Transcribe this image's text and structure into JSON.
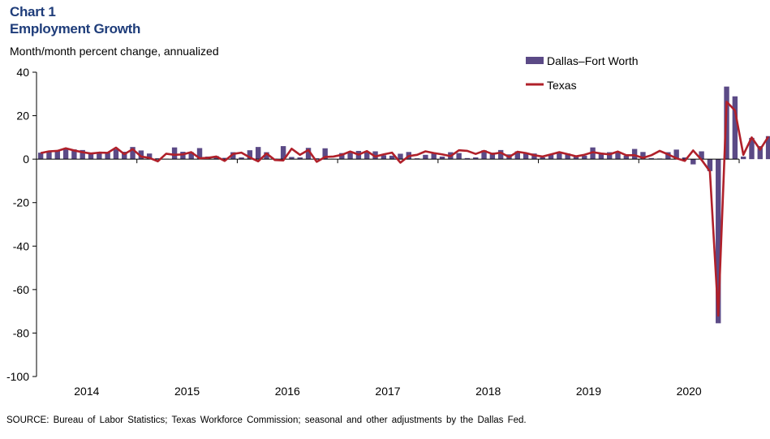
{
  "header": {
    "chart_number": "Chart 1",
    "title": "Employment Growth",
    "subtitle": "Month/month  percent change, annualized"
  },
  "source": "SOURCE: Bureau of Labor Statistics; Texas Workforce Commission; seasonal and other adjustments by the Dallas Fed.",
  "colors": {
    "dfw": "#5b4a86",
    "texas": "#b0202a"
  },
  "chart_data": {
    "type": "bar",
    "title": "Employment Growth",
    "ylabel": "Month/month  percent change, annualized",
    "xlabel": "",
    "ylim": [
      -100,
      40
    ],
    "yticks": [
      40,
      20,
      0,
      -20,
      -40,
      -60,
      -80,
      -100
    ],
    "year_labels": [
      "2014",
      "2015",
      "2016",
      "2017",
      "2018",
      "2019",
      "2020"
    ],
    "start_month": "2014-01",
    "legend_position": "top-right",
    "grid": false,
    "series": [
      {
        "name": "Dallas–Fort Worth",
        "kind": "bar",
        "values": [
          3.0,
          3.5,
          3.8,
          5.0,
          4.5,
          4.2,
          2.8,
          3.2,
          3.0,
          4.6,
          3.4,
          5.6,
          4.0,
          2.6,
          0.4,
          0.2,
          5.4,
          3.4,
          3.2,
          5.1,
          1.2,
          1.4,
          0.6,
          3.2,
          0.8,
          4.1,
          5.6,
          3.2,
          0.2,
          6.0,
          1.0,
          0.8,
          5.2,
          0.4,
          5.0,
          0.2,
          2.8,
          3.0,
          3.8,
          3.2,
          3.6,
          1.8,
          1.6,
          2.5,
          3.3,
          0.4,
          2.0,
          2.6,
          1.2,
          3.2,
          2.8,
          0.5,
          0.8,
          4.1,
          3.0,
          4.2,
          2.2,
          3.6,
          3.0,
          2.6,
          0.8,
          2.2,
          3.0,
          2.6,
          1.4,
          1.6,
          5.4,
          2.8,
          3.2,
          3.0,
          1.6,
          4.7,
          3.3,
          0.5,
          0.3,
          3.2,
          4.4,
          0.8,
          -2.4,
          3.6,
          -5.5,
          -75.5,
          33.4,
          28.9,
          1.2,
          9.8,
          6.0,
          10.6
        ]
      },
      {
        "name": "Texas",
        "kind": "line",
        "values": [
          2.8,
          3.6,
          3.8,
          5.0,
          4.0,
          3.2,
          2.6,
          3.0,
          2.9,
          5.3,
          2.3,
          4.6,
          1.2,
          0.6,
          -1.0,
          2.5,
          2.0,
          2.2,
          3.2,
          0.4,
          0.6,
          1.2,
          -0.8,
          2.4,
          3.0,
          0.8,
          -1.0,
          2.6,
          -0.4,
          -0.6,
          4.8,
          2.0,
          4.2,
          -1.2,
          1.0,
          1.2,
          2.0,
          3.5,
          2.1,
          3.7,
          1.2,
          2.2,
          3.0,
          -1.6,
          1.4,
          2.0,
          3.6,
          2.8,
          2.2,
          1.4,
          4.1,
          3.8,
          2.4,
          3.8,
          2.4,
          3.0,
          1.0,
          3.4,
          2.8,
          1.8,
          1.2,
          2.2,
          3.2,
          2.3,
          1.3,
          2.0,
          3.2,
          2.6,
          2.2,
          3.5,
          1.8,
          1.8,
          0.6,
          1.8,
          3.8,
          2.2,
          0.4,
          -0.8,
          4.0,
          -0.3,
          -5.6,
          -72.0,
          26.4,
          22.4,
          2.0,
          10.0,
          4.4,
          10.4
        ]
      }
    ]
  }
}
